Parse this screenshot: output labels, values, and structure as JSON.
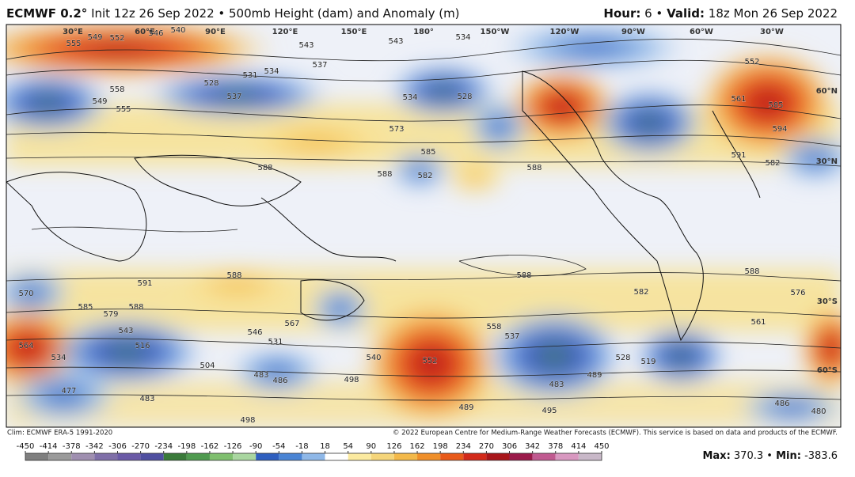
{
  "header": {
    "model": "ECMWF 0.2°",
    "description": "Init 12z 26 Sep 2022 • 500mb Height (dam) and Anomaly (m)",
    "hour_label": "Hour:",
    "hour_value": "6 •",
    "valid_label": "Valid:",
    "valid_value": "18z Mon 26 Sep 2022"
  },
  "map": {
    "lon_labels": [
      "30°E",
      "60°E",
      "90°E",
      "120°E",
      "150°E",
      "180°",
      "150°W",
      "120°W",
      "90°W",
      "60°W",
      "30°W"
    ],
    "lat_labels": [
      "60°N",
      "30°N",
      "30°S",
      "60°S"
    ],
    "contour_labels": [
      549,
      552,
      555,
      546,
      540,
      543,
      543,
      534,
      537,
      528,
      531,
      534,
      537,
      549,
      555,
      558,
      534,
      528,
      573,
      585,
      582,
      588,
      588,
      588,
      561,
      585,
      594,
      552,
      591,
      582,
      588,
      591,
      588,
      585,
      579,
      570,
      564,
      534,
      543,
      516,
      504,
      483,
      486,
      567,
      546,
      531,
      540,
      552,
      558,
      537,
      489,
      528,
      519,
      483,
      498,
      498,
      483,
      477,
      489,
      495,
      480,
      486,
      561,
      588,
      582,
      588,
      576
    ]
  },
  "footer": {
    "climatology": "Clim: ECMWF ERA-5 1991-2020",
    "copyright": "© 2022 European Centre for Medium-Range Weather Forecasts (ECMWF). This service is based on data and products of the ECMWF.",
    "max_label": "Max:",
    "max_value": "370.3 •",
    "min_label": "Min:",
    "min_value": "-383.6"
  },
  "colorbar": {
    "ticks": [
      -450,
      -414,
      -378,
      -342,
      -306,
      -270,
      -234,
      -198,
      -162,
      -126,
      -90,
      -54,
      -18,
      18,
      54,
      90,
      126,
      162,
      198,
      234,
      270,
      306,
      342,
      378,
      414,
      450
    ]
  }
}
